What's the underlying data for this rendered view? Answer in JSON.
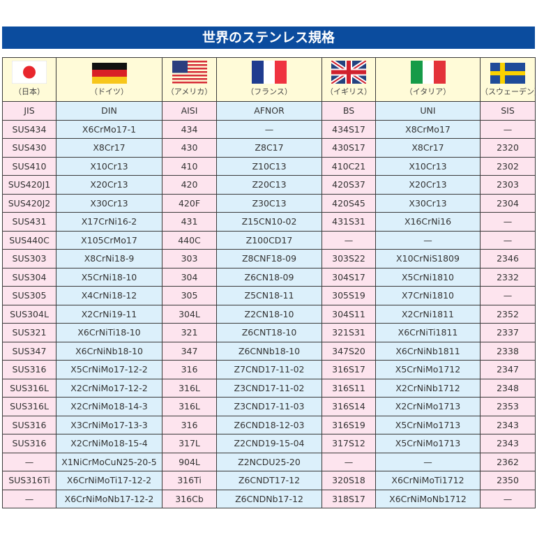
{
  "title": "世界のステンレス規格",
  "countries": [
    "（日本）",
    "（ドイツ）",
    "（アメリカ）",
    "（フランス）",
    "（イギリス）",
    "（イタリア）",
    "（スウェーデン）"
  ],
  "flags": [
    "japan-flag-icon",
    "germany-flag-icon",
    "usa-flag-icon",
    "france-flag-icon",
    "uk-flag-icon",
    "italy-flag-icon",
    "sweden-flag-icon"
  ],
  "standards": [
    "JIS",
    "DIN",
    "AISI",
    "AFNOR",
    "BS",
    "UNI",
    "SIS"
  ],
  "colors": {
    "title_bg": "#0b4c9e",
    "pink": "#fde4ee",
    "blue": "#dcf0fb",
    "flag_row": "#fffbd8"
  },
  "rows": [
    [
      "SUS434",
      "X6CrMo17-1",
      "434",
      "—",
      "434S17",
      "X8CrMo17",
      "—"
    ],
    [
      "SUS430",
      "X8Cr17",
      "430",
      "Z8C17",
      "430S17",
      "X8Cr17",
      "2320"
    ],
    [
      "SUS410",
      "X10Cr13",
      "410",
      "Z10C13",
      "410C21",
      "X10Cr13",
      "2302"
    ],
    [
      "SUS420J1",
      "X20Cr13",
      "420",
      "Z20C13",
      "420S37",
      "X20Cr13",
      "2303"
    ],
    [
      "SUS420J2",
      "X30Cr13",
      "420F",
      "Z30C13",
      "420S45",
      "X30Cr13",
      "2304"
    ],
    [
      "SUS431",
      "X17CrNi16-2",
      "431",
      "Z15CN10-02",
      "431S31",
      "X16CrNi16",
      "—"
    ],
    [
      "SUS440C",
      "X105CrMo17",
      "440C",
      "Z100CD17",
      "—",
      "—",
      "—"
    ],
    [
      "SUS303",
      "X8CrNi18-9",
      "303",
      "Z8CNF18-09",
      "303S22",
      "X10CrNiS1809",
      "2346"
    ],
    [
      "SUS304",
      "X5CrNi18-10",
      "304",
      "Z6CN18-09",
      "304S17",
      "X5CrNi1810",
      "2332"
    ],
    [
      "SUS305",
      "X4CrNi18-12",
      "305",
      "Z5CN18-11",
      "305S19",
      "X7CrNi1810",
      "—"
    ],
    [
      "SUS304L",
      "X2CrNi19-11",
      "304L",
      "Z2CN18-10",
      "304S11",
      "X2CrNi1811",
      "2352"
    ],
    [
      "SUS321",
      "X6CrNiTi18-10",
      "321",
      "Z6CNT18-10",
      "321S31",
      "X6CrNiTi1811",
      "2337"
    ],
    [
      "SUS347",
      "X6CrNiNb18-10",
      "347",
      "Z6CNNb18-10",
      "347S20",
      "X6CrNiNb1811",
      "2338"
    ],
    [
      "SUS316",
      "X5CrNiMo17-12-2",
      "316",
      "Z7CND17-11-02",
      "316S17",
      "X5CrNiMo1712",
      "2347"
    ],
    [
      "SUS316L",
      "X2CrNiMo17-12-2",
      "316L",
      "Z3CND17-11-02",
      "316S11",
      "X2CrNiNb1712",
      "2348"
    ],
    [
      "SUS316L",
      "X2CrNiMo18-14-3",
      "316L",
      "Z3CND17-11-03",
      "316S14",
      "X2CrNiMo1713",
      "2353"
    ],
    [
      "SUS316",
      "X3CrNiMo17-13-3",
      "316",
      "Z6CND18-12-03",
      "316S19",
      "X5CrNiMo1713",
      "2343"
    ],
    [
      "SUS316",
      "X2CrNiMo18-15-4",
      "317L",
      "Z2CND19-15-04",
      "317S12",
      "X5CrNiMo1713",
      "2343"
    ],
    [
      "—",
      "X1NiCrMoCuN25-20-5",
      "904L",
      "Z2NCDU25-20",
      "—",
      "—",
      "2362"
    ],
    [
      "SUS316Ti",
      "X6CrNiMoTi17-12-2",
      "316Ti",
      "Z6CNDT17-12",
      "320S18",
      "X6CrNiMoTi1712",
      "2350"
    ],
    [
      "—",
      "X6CrNiMoNb17-12-2",
      "316Cb",
      "Z6CNDNb17-12",
      "318S17",
      "X6CrNiMoNb1712",
      "—"
    ]
  ]
}
